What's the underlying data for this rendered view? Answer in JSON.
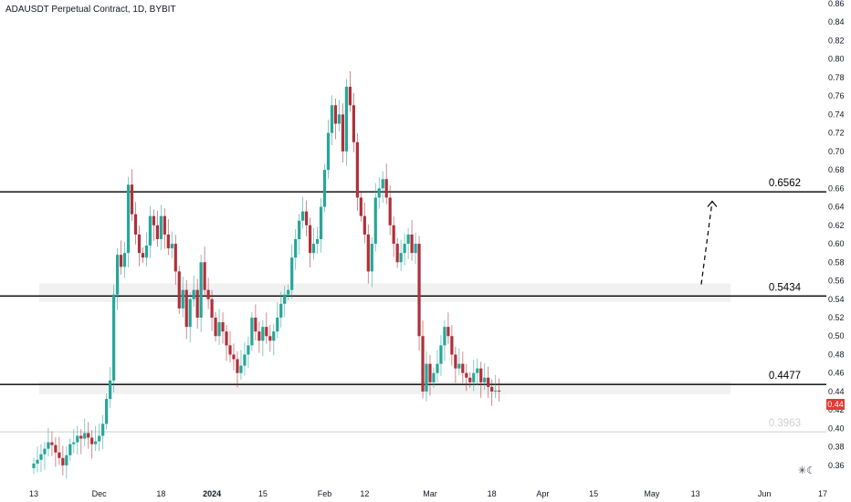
{
  "header": {
    "title": "ADAUSDT Perpetual Contract, 1D, BYBIT"
  },
  "price_tag": "0.44",
  "logo": "TradingView",
  "colors": {
    "up": "#26a69a",
    "down": "#b0303a",
    "level": "#000000",
    "zone": "#e6e6e6",
    "faint": "#cfcfcf"
  },
  "chart_data": {
    "type": "candlestick",
    "ylim": [
      0.35,
      0.86
    ],
    "y_ticks": [
      "0.36",
      "0.38",
      "0.40",
      "0.42",
      "0.44",
      "0.46",
      "0.48",
      "0.50",
      "0.52",
      "0.54",
      "0.56",
      "0.58",
      "0.60",
      "0.62",
      "0.64",
      "0.66",
      "0.68",
      "0.70",
      "0.72",
      "0.74",
      "0.76",
      "0.78",
      "0.80",
      "0.82",
      "0.84",
      "0.86"
    ],
    "x_ticks": [
      {
        "label": "13",
        "date": "2023-11-13",
        "bold": false
      },
      {
        "label": "Dec",
        "date": "2023-12-01",
        "bold": false
      },
      {
        "label": "18",
        "date": "2023-12-18",
        "bold": false
      },
      {
        "label": "2024",
        "date": "2024-01-01",
        "bold": true
      },
      {
        "label": "15",
        "date": "2024-01-15",
        "bold": false
      },
      {
        "label": "Feb",
        "date": "2024-02-01",
        "bold": false
      },
      {
        "label": "12",
        "date": "2024-02-12",
        "bold": false
      },
      {
        "label": "Mar",
        "date": "2024-03-01",
        "bold": false
      },
      {
        "label": "18",
        "date": "2024-03-18",
        "bold": false
      },
      {
        "label": "Apr",
        "date": "2024-04-01",
        "bold": false
      },
      {
        "label": "15",
        "date": "2024-04-15",
        "bold": false
      },
      {
        "label": "May",
        "date": "2024-05-01",
        "bold": false
      },
      {
        "label": "13",
        "date": "2024-05-13",
        "bold": false
      },
      {
        "label": "Jun",
        "date": "2024-06-01",
        "bold": false
      },
      {
        "label": "17",
        "date": "2024-06-17",
        "bold": false
      }
    ],
    "levels": [
      {
        "value": 0.6562,
        "label": "0.6562"
      },
      {
        "value": 0.5434,
        "label": "0.5434"
      },
      {
        "value": 0.4477,
        "label": "0.4477"
      },
      {
        "value": 0.3963,
        "label": "0.3963",
        "faint": true
      }
    ],
    "zones": [
      {
        "from": 0.537,
        "to": 0.557
      },
      {
        "from": 0.437,
        "to": 0.451
      }
    ],
    "projection": {
      "from": 0.556,
      "to": 0.646
    },
    "closes": [
      0.362,
      0.366,
      0.372,
      0.378,
      0.385,
      0.382,
      0.374,
      0.368,
      0.36,
      0.371,
      0.383,
      0.385,
      0.392,
      0.389,
      0.395,
      0.39,
      0.383,
      0.386,
      0.392,
      0.405,
      0.432,
      0.452,
      0.545,
      0.588,
      0.575,
      0.59,
      0.664,
      0.632,
      0.61,
      0.59,
      0.585,
      0.598,
      0.63,
      0.62,
      0.605,
      0.63,
      0.61,
      0.595,
      0.6,
      0.57,
      0.53,
      0.55,
      0.51,
      0.54,
      0.55,
      0.52,
      0.58,
      0.55,
      0.54,
      0.52,
      0.5,
      0.515,
      0.505,
      0.49,
      0.48,
      0.475,
      0.46,
      0.468,
      0.48,
      0.49,
      0.52,
      0.505,
      0.495,
      0.51,
      0.5,
      0.495,
      0.505,
      0.52,
      0.535,
      0.545,
      0.55,
      0.585,
      0.605,
      0.625,
      0.635,
      0.62,
      0.59,
      0.6,
      0.605,
      0.64,
      0.68,
      0.72,
      0.75,
      0.73,
      0.74,
      0.7,
      0.77,
      0.75,
      0.71,
      0.65,
      0.63,
      0.61,
      0.57,
      0.6,
      0.65,
      0.66,
      0.67,
      0.65,
      0.62,
      0.6,
      0.58,
      0.59,
      0.6,
      0.61,
      0.59,
      0.6,
      0.5,
      0.44,
      0.47,
      0.45,
      0.46,
      0.47,
      0.49,
      0.51,
      0.5,
      0.48,
      0.465,
      0.47,
      0.46,
      0.455,
      0.45,
      0.46,
      0.465,
      0.45,
      0.455,
      0.445,
      0.44,
      0.441,
      0.44
    ]
  }
}
